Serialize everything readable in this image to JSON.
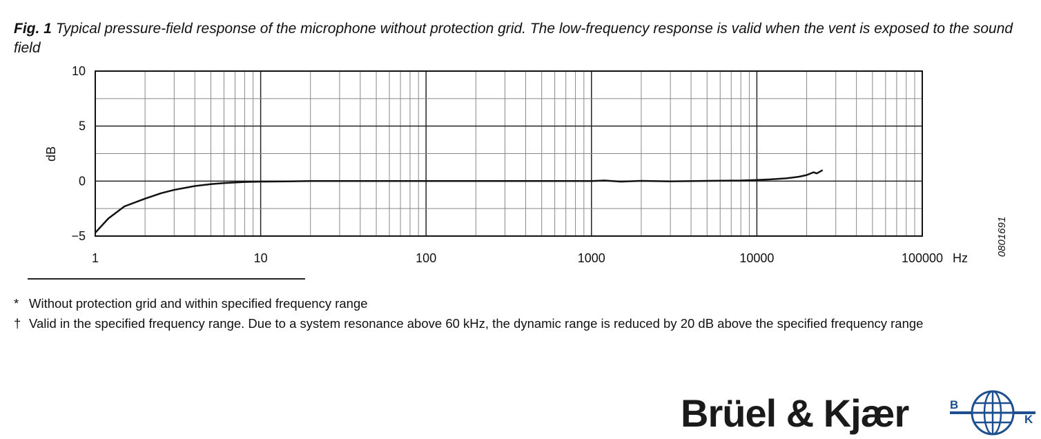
{
  "caption": {
    "label": "Fig. 1",
    "text": "Typical pressure-field response of the microphone without protection grid. The low-frequency response is valid when the vent is exposed to the sound field"
  },
  "chart_data": {
    "type": "line",
    "xscale": "log",
    "xlim": [
      1,
      100000
    ],
    "ylim": [
      -5,
      10
    ],
    "xlabel": "Hz",
    "ylabel": "dB",
    "x_ticks": [
      "1",
      "10",
      "100",
      "1000",
      "10000",
      "100000"
    ],
    "y_ticks": [
      "10",
      "5",
      "0",
      "−5"
    ],
    "grid": true,
    "series": [
      {
        "x": [
          1,
          1.2,
          1.5,
          2,
          2.5,
          3,
          4,
          5,
          6,
          8,
          10,
          15,
          20,
          50,
          100,
          200,
          500,
          1000,
          1200,
          1500,
          2000,
          3000,
          5000,
          8000,
          10000,
          12000,
          15000,
          18000,
          20000,
          22000,
          23000,
          24000,
          25000
        ],
        "y": [
          -4.7,
          -3.4,
          -2.3,
          -1.6,
          -1.1,
          -0.8,
          -0.45,
          -0.28,
          -0.18,
          -0.08,
          -0.05,
          -0.02,
          0,
          0,
          0,
          0,
          0,
          0,
          0.05,
          -0.05,
          0.02,
          -0.03,
          0.02,
          0.05,
          0.1,
          0.15,
          0.25,
          0.4,
          0.55,
          0.8,
          0.7,
          0.85,
          1.0
        ]
      }
    ]
  },
  "figure_code": "0801691",
  "footnotes": [
    {
      "symbol": "*",
      "text": "Without protection grid and within specified frequency range"
    },
    {
      "symbol": "†",
      "text": "Valid in the specified frequency range. Due to a system resonance above 60 kHz, the dynamic range is reduced by 20 dB above the specified frequency range"
    }
  ],
  "logo": {
    "wordmark": "Brüel & Kjær",
    "emblem_left": "B",
    "emblem_right": "K"
  }
}
